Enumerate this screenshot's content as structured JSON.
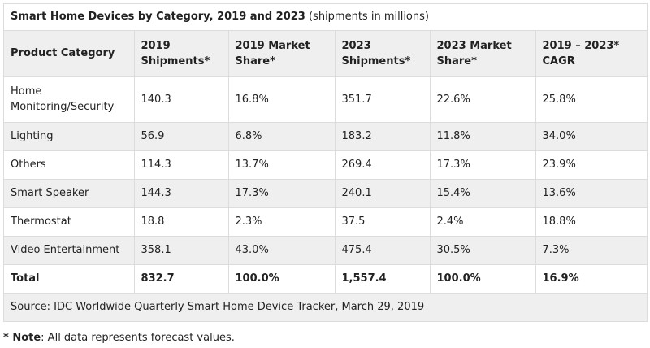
{
  "caption": {
    "title": "Smart Home Devices by Category, 2019 and 2023",
    "subtitle": "(shipments in millions)"
  },
  "table": {
    "headers": [
      "Product Category",
      "2019 Shipments*",
      "2019 Market Share*",
      "2023 Shipments*",
      "2023 Market Share*",
      "2019 – 2023* CAGR"
    ],
    "rows": [
      [
        "Home Monitoring/Security",
        "140.3",
        "16.8%",
        "351.7",
        "22.6%",
        "25.8%"
      ],
      [
        "Lighting",
        "56.9",
        "6.8%",
        "183.2",
        "11.8%",
        "34.0%"
      ],
      [
        "Others",
        "114.3",
        "13.7%",
        "269.4",
        "17.3%",
        "23.9%"
      ],
      [
        "Smart Speaker",
        "144.3",
        "17.3%",
        "240.1",
        "15.4%",
        "13.6%"
      ],
      [
        "Thermostat",
        "18.8",
        "2.3%",
        "37.5",
        "2.4%",
        "18.8%"
      ],
      [
        "Video Entertainment",
        "358.1",
        "43.0%",
        "475.4",
        "30.5%",
        "7.3%"
      ],
      [
        "Total",
        "832.7",
        "100.0%",
        "1,557.4",
        "100.0%",
        "16.9%"
      ]
    ]
  },
  "source": "Source: IDC Worldwide Quarterly Smart Home Device Tracker, March 29, 2019",
  "note": {
    "label": "* Note",
    "text": ": All data represents forecast values."
  }
}
